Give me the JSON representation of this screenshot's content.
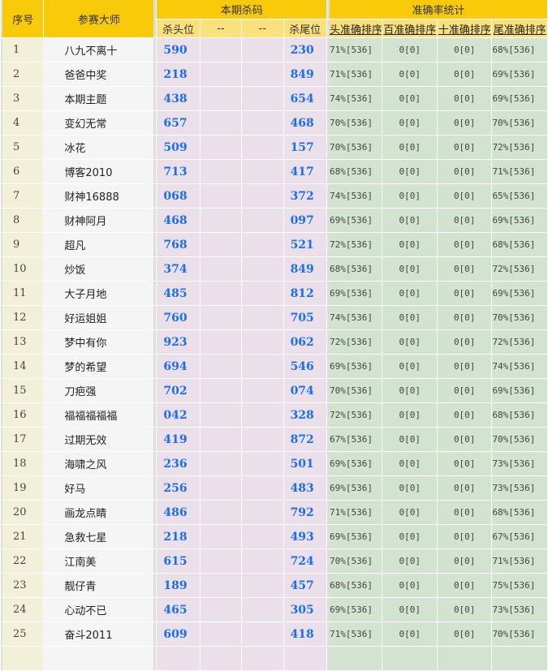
{
  "header": {
    "seq": "序号",
    "master": "参赛大师",
    "kill_group": "本期杀码",
    "accuracy_group": "准确率统计",
    "kill_cols": [
      "杀头位",
      "--",
      "--",
      "杀尾位"
    ],
    "accuracy_cols": [
      "头准确排序",
      "百准确排序",
      "十准确排序",
      "尾准确排序"
    ]
  },
  "rows": [
    {
      "seq": "1",
      "name": "八九不离十",
      "head": "590",
      "c2": "",
      "c3": "",
      "tail": "230",
      "acc": [
        "71%[536]",
        "0[0]",
        "0[0]",
        "68%[536]"
      ]
    },
    {
      "seq": "2",
      "name": "爸爸中奖",
      "head": "218",
      "c2": "",
      "c3": "",
      "tail": "849",
      "acc": [
        "71%[536]",
        "0[0]",
        "0[0]",
        "69%[536]"
      ]
    },
    {
      "seq": "3",
      "name": "本期主题",
      "head": "438",
      "c2": "",
      "c3": "",
      "tail": "654",
      "acc": [
        "74%[536]",
        "0[0]",
        "0[0]",
        "69%[536]"
      ]
    },
    {
      "seq": "4",
      "name": "变幻无常",
      "head": "657",
      "c2": "",
      "c3": "",
      "tail": "468",
      "acc": [
        "70%[536]",
        "0[0]",
        "0[0]",
        "70%[536]"
      ]
    },
    {
      "seq": "5",
      "name": "冰花",
      "head": "509",
      "c2": "",
      "c3": "",
      "tail": "157",
      "acc": [
        "70%[536]",
        "0[0]",
        "0[0]",
        "72%[536]"
      ]
    },
    {
      "seq": "6",
      "name": "博客2010",
      "head": "713",
      "c2": "",
      "c3": "",
      "tail": "417",
      "acc": [
        "68%[536]",
        "0[0]",
        "0[0]",
        "71%[536]"
      ]
    },
    {
      "seq": "7",
      "name": "财神16888",
      "head": "068",
      "c2": "",
      "c3": "",
      "tail": "372",
      "acc": [
        "74%[536]",
        "0[0]",
        "0[0]",
        "65%[536]"
      ]
    },
    {
      "seq": "8",
      "name": "财神阿月",
      "head": "468",
      "c2": "",
      "c3": "",
      "tail": "097",
      "acc": [
        "69%[536]",
        "0[0]",
        "0[0]",
        "69%[536]"
      ]
    },
    {
      "seq": "9",
      "name": "超凡",
      "head": "768",
      "c2": "",
      "c3": "",
      "tail": "521",
      "acc": [
        "72%[536]",
        "0[0]",
        "0[0]",
        "68%[536]"
      ]
    },
    {
      "seq": "10",
      "name": "炒饭",
      "head": "374",
      "c2": "",
      "c3": "",
      "tail": "849",
      "acc": [
        "68%[536]",
        "0[0]",
        "0[0]",
        "72%[536]"
      ]
    },
    {
      "seq": "11",
      "name": "大子月地",
      "head": "485",
      "c2": "",
      "c3": "",
      "tail": "812",
      "acc": [
        "69%[536]",
        "0[0]",
        "0[0]",
        "69%[536]"
      ]
    },
    {
      "seq": "12",
      "name": "好运姐姐",
      "head": "760",
      "c2": "",
      "c3": "",
      "tail": "705",
      "acc": [
        "74%[536]",
        "0[0]",
        "0[0]",
        "70%[536]"
      ]
    },
    {
      "seq": "13",
      "name": "梦中有你",
      "head": "923",
      "c2": "",
      "c3": "",
      "tail": "062",
      "acc": [
        "72%[536]",
        "0[0]",
        "0[0]",
        "72%[536]"
      ]
    },
    {
      "seq": "14",
      "name": "梦的希望",
      "head": "694",
      "c2": "",
      "c3": "",
      "tail": "546",
      "acc": [
        "69%[536]",
        "0[0]",
        "0[0]",
        "74%[536]"
      ]
    },
    {
      "seq": "15",
      "name": "刀疤强",
      "head": "702",
      "c2": "",
      "c3": "",
      "tail": "074",
      "acc": [
        "70%[536]",
        "0[0]",
        "0[0]",
        "69%[536]"
      ]
    },
    {
      "seq": "16",
      "name": "福福福福福",
      "head": "042",
      "c2": "",
      "c3": "",
      "tail": "328",
      "acc": [
        "72%[536]",
        "0[0]",
        "0[0]",
        "68%[536]"
      ]
    },
    {
      "seq": "17",
      "name": "过期无效",
      "head": "419",
      "c2": "",
      "c3": "",
      "tail": "872",
      "acc": [
        "67%[536]",
        "0[0]",
        "0[0]",
        "70%[536]"
      ]
    },
    {
      "seq": "18",
      "name": "海啸之风",
      "head": "236",
      "c2": "",
      "c3": "",
      "tail": "501",
      "acc": [
        "69%[536]",
        "0[0]",
        "0[0]",
        "73%[536]"
      ]
    },
    {
      "seq": "19",
      "name": "好马",
      "head": "256",
      "c2": "",
      "c3": "",
      "tail": "483",
      "acc": [
        "69%[536]",
        "0[0]",
        "0[0]",
        "73%[536]"
      ]
    },
    {
      "seq": "20",
      "name": "画龙点睛",
      "head": "486",
      "c2": "",
      "c3": "",
      "tail": "792",
      "acc": [
        "71%[536]",
        "0[0]",
        "0[0]",
        "68%[536]"
      ]
    },
    {
      "seq": "21",
      "name": "急救七星",
      "head": "218",
      "c2": "",
      "c3": "",
      "tail": "493",
      "acc": [
        "69%[536]",
        "0[0]",
        "0[0]",
        "67%[536]"
      ]
    },
    {
      "seq": "22",
      "name": "江南美",
      "head": "615",
      "c2": "",
      "c3": "",
      "tail": "724",
      "acc": [
        "70%[536]",
        "0[0]",
        "0[0]",
        "71%[536]"
      ]
    },
    {
      "seq": "23",
      "name": "靓仔青",
      "head": "189",
      "c2": "",
      "c3": "",
      "tail": "457",
      "acc": [
        "68%[536]",
        "0[0]",
        "0[0]",
        "75%[536]"
      ]
    },
    {
      "seq": "24",
      "name": "心动不已",
      "head": "465",
      "c2": "",
      "c3": "",
      "tail": "305",
      "acc": [
        "69%[536]",
        "0[0]",
        "0[0]",
        "73%[536]"
      ]
    },
    {
      "seq": "25",
      "name": "奋斗2011",
      "head": "609",
      "c2": "",
      "c3": "",
      "tail": "418",
      "acc": [
        "71%[536]",
        "0[0]",
        "0[0]",
        "70%[536]"
      ]
    },
    {
      "seq": "",
      "name": "",
      "head": "",
      "c2": "",
      "c3": "",
      "tail": "",
      "acc": [
        "",
        "",
        "",
        ""
      ]
    }
  ]
}
